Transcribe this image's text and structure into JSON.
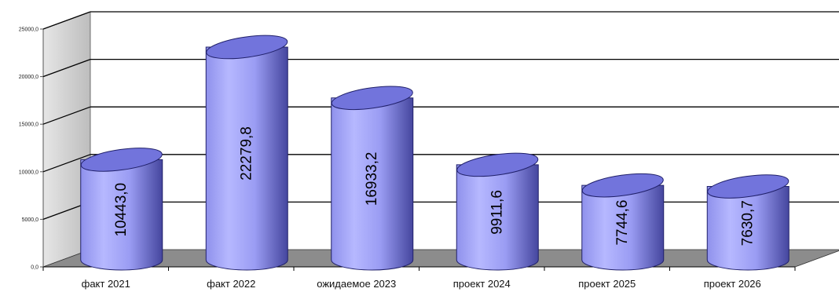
{
  "chart_data": {
    "type": "bar",
    "style": "3d-cylinder",
    "categories": [
      "факт 2021",
      "факт 2022",
      "ожидаемое 2023",
      "проект 2024",
      "проект 2025",
      "проект 2026"
    ],
    "values": [
      10443.0,
      22279.8,
      16933.2,
      9911.6,
      7744.6,
      7630.7
    ],
    "data_labels": [
      "10443,0",
      "22279,8",
      "16933,2",
      "9911,6",
      "7744,6",
      "7630,7"
    ],
    "y_ticks": [
      0,
      5000,
      10000,
      15000,
      20000,
      25000
    ],
    "y_tick_labels": [
      "0,0",
      "5000,0",
      "10000,0",
      "15000,0",
      "20000,0",
      "25000,0"
    ],
    "ylim": [
      0,
      25000
    ],
    "grid": true,
    "legend": "none",
    "colors": {
      "bar_light": "#b4b6ff",
      "bar_mid": "#9a9cf4",
      "bar_dark": "#3e3f9a",
      "bar_top": "#7274dc",
      "wall": "#d2d2d2",
      "floor": "#8c8c8c",
      "grid": "#000000"
    }
  }
}
